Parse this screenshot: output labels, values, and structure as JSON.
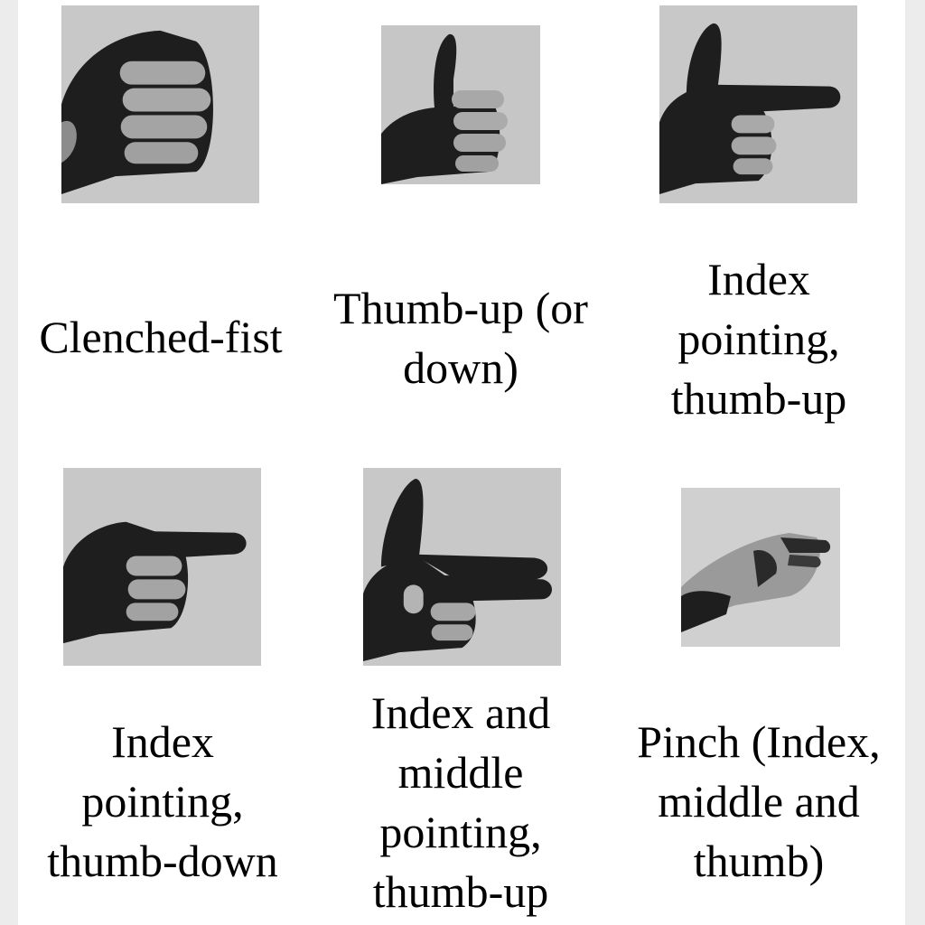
{
  "gestures": [
    {
      "caption_lines": [
        "Clenched-fist"
      ]
    },
    {
      "caption_lines": [
        "Thumb-up (or",
        "down)"
      ]
    },
    {
      "caption_lines": [
        "Index",
        "pointing,",
        "thumb-up"
      ]
    },
    {
      "caption_lines": [
        "Index",
        "pointing,",
        "thumb-down"
      ]
    },
    {
      "caption_lines": [
        "Index and",
        "middle",
        "pointing,",
        "thumb-up"
      ]
    },
    {
      "caption_lines": [
        "Pinch (Index,",
        "middle and",
        "thumb)"
      ]
    }
  ],
  "colors": {
    "glove": "#1e1e1e",
    "skin": "#a9a9a9",
    "background": "#c4c4c4"
  }
}
